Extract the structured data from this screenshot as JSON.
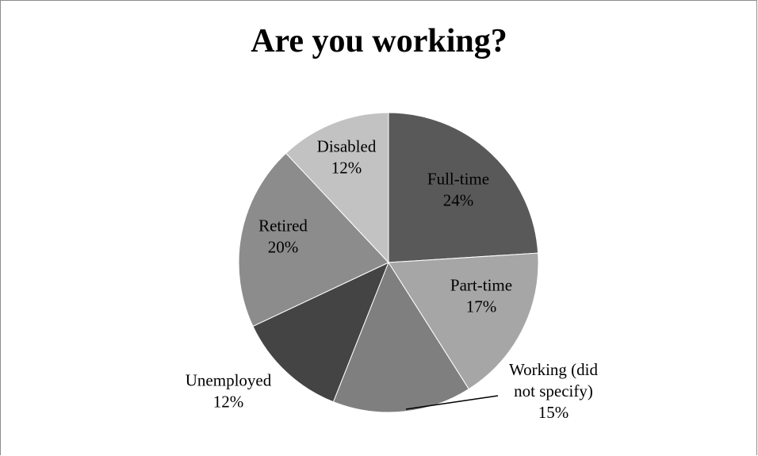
{
  "chart_data": {
    "type": "pie",
    "title": "Are you working?",
    "slices": [
      {
        "label": "Full-time",
        "value": 24,
        "display": "24%",
        "color": "#595959"
      },
      {
        "label": "Part-time",
        "value": 17,
        "display": "17%",
        "color": "#a6a6a6"
      },
      {
        "label": "Working (did not specify)",
        "value": 15,
        "display": "15%",
        "color": "#7f7f7f"
      },
      {
        "label": "Unemployed",
        "value": 12,
        "display": "12%",
        "color": "#444444"
      },
      {
        "label": "Retired",
        "value": 20,
        "display": "20%",
        "color": "#8c8c8c"
      },
      {
        "label": "Disabled",
        "value": 12,
        "display": "12%",
        "color": "#c2c2c2"
      }
    ],
    "legend": "none",
    "data_labels": "category and percentage"
  }
}
